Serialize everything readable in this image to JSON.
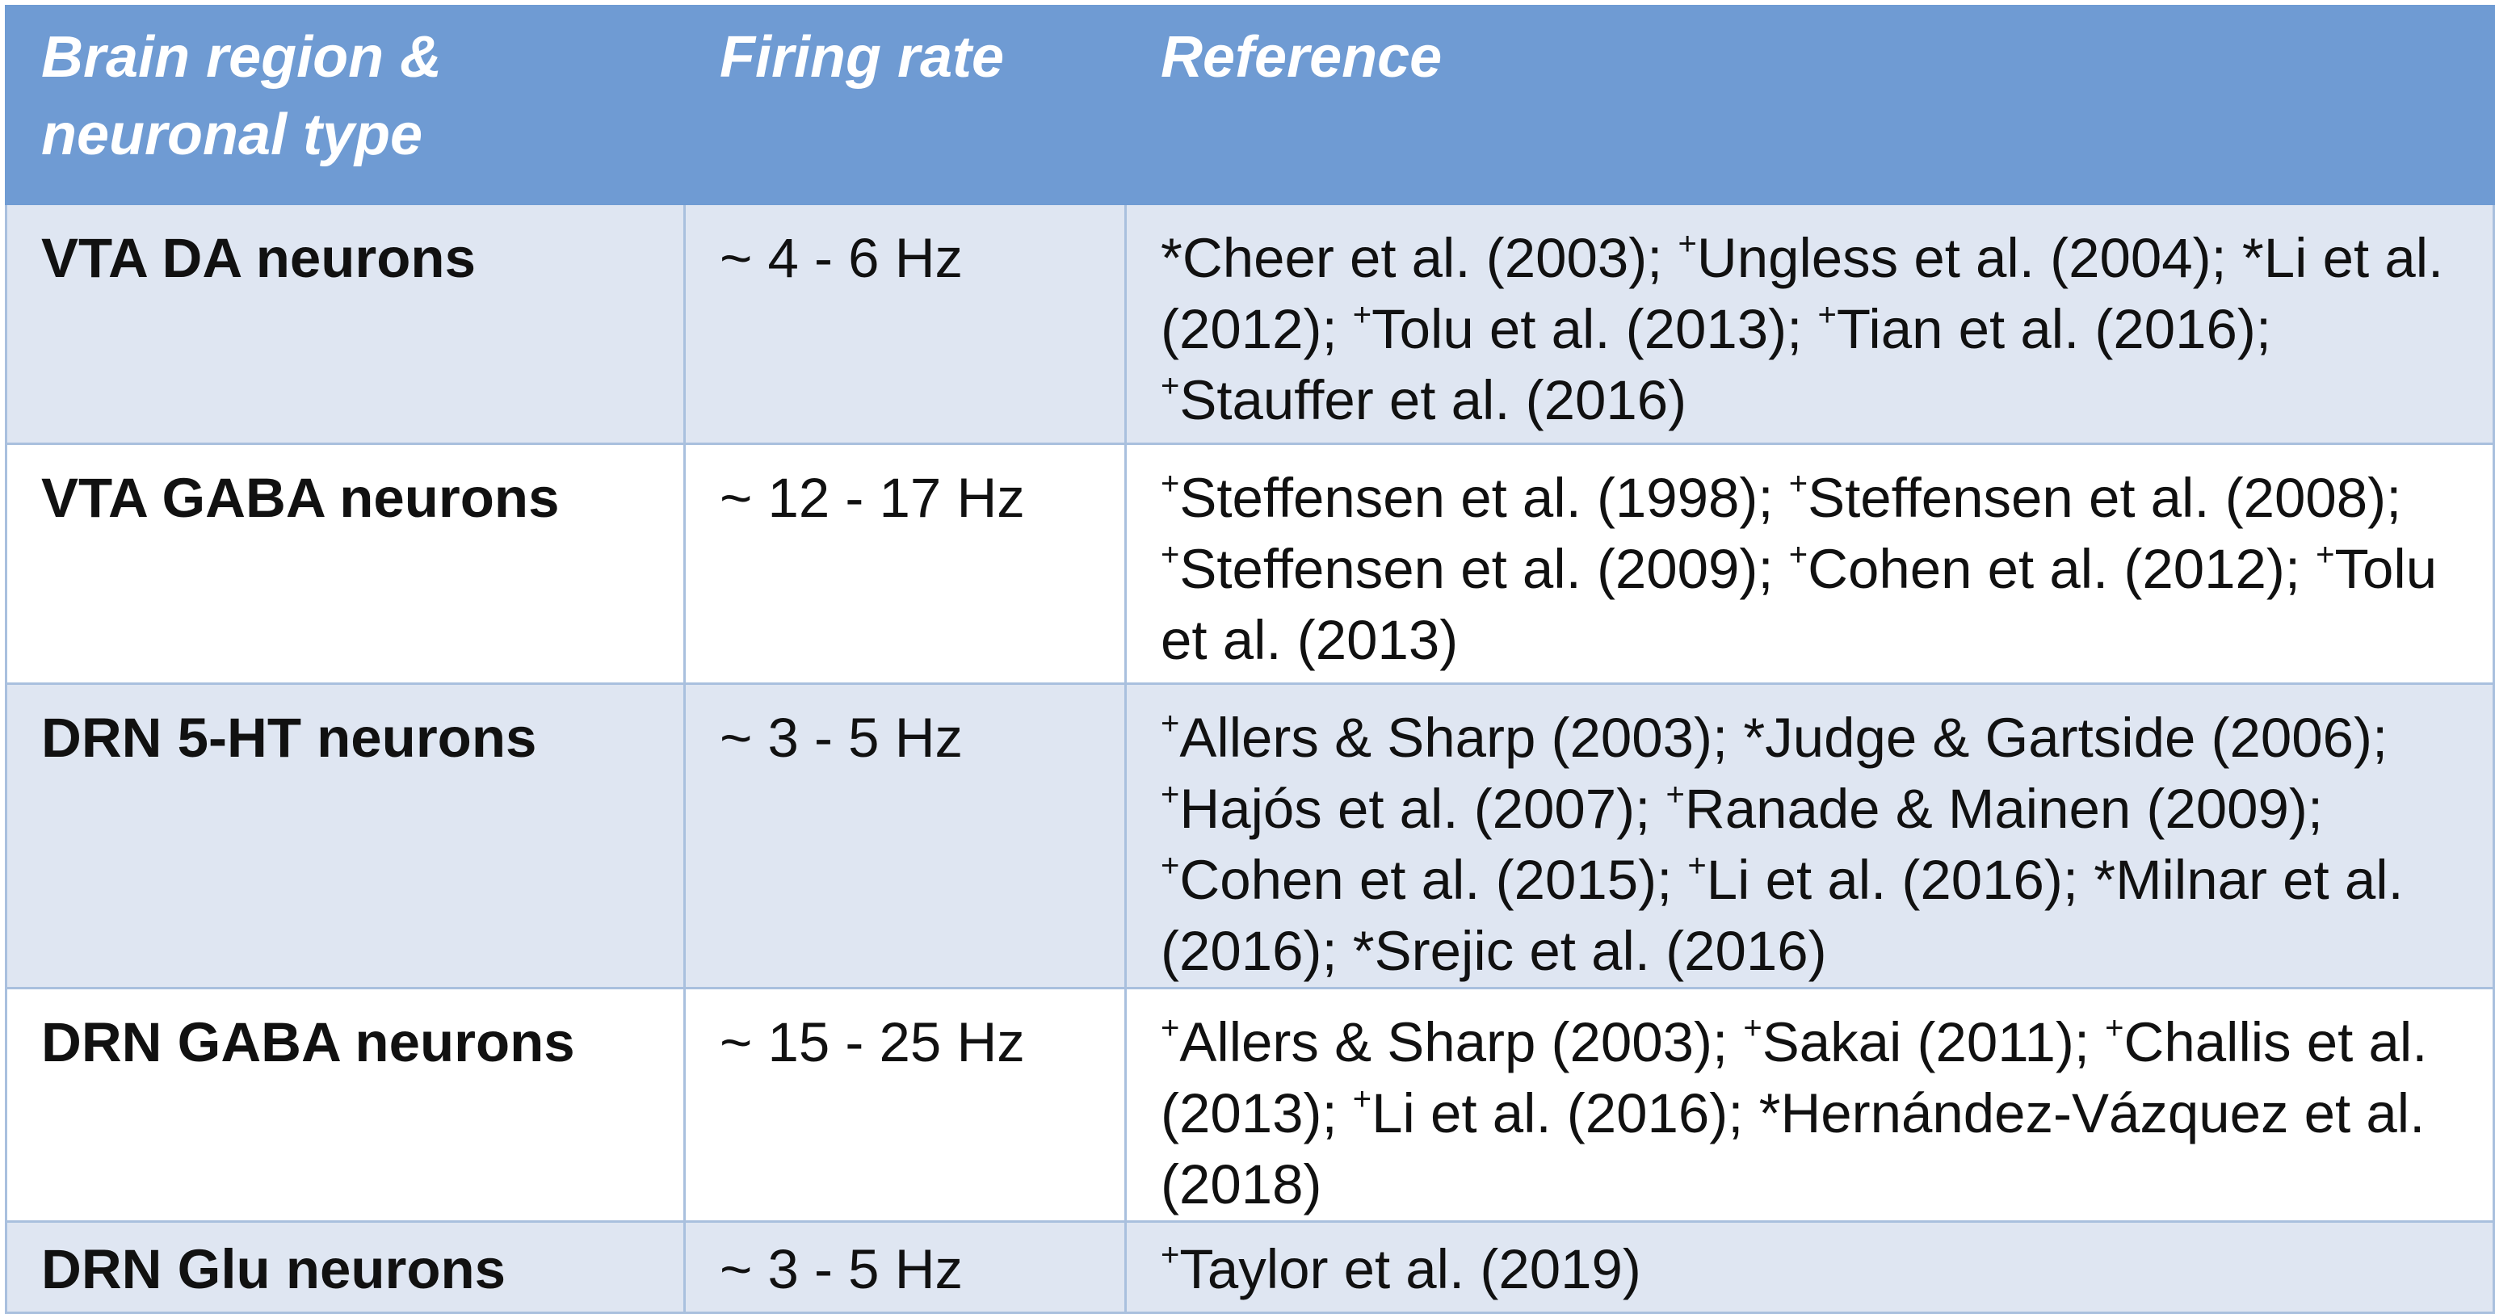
{
  "table": {
    "headers": [
      "Brain region & neuronal type",
      "Firing rate",
      "Reference"
    ],
    "rows": [
      {
        "region": "VTA DA neurons",
        "rate": "~ 4 - 6 Hz",
        "refs": [
          {
            "mark": "*",
            "text": "Cheer et al. (2003); "
          },
          {
            "mark": "+",
            "text": "Ungless et al. (2004); "
          },
          {
            "mark": "*",
            "text": "Li et al. (2012); "
          },
          {
            "mark": "+",
            "text": "Tolu et al. (2013); "
          },
          {
            "mark": "+",
            "text": "Tian et al. (2016); "
          },
          {
            "mark": "+",
            "text": "Stauffer et al. (2016)"
          }
        ]
      },
      {
        "region": "VTA GABA neurons",
        "rate": "~ 12 - 17 Hz",
        "refs": [
          {
            "mark": "+",
            "text": "Steffensen et al. (1998); "
          },
          {
            "mark": "+",
            "text": "Steffensen et al. (2008); "
          },
          {
            "mark": "+",
            "text": "Steffensen et al. (2009); "
          },
          {
            "mark": "+",
            "text": "Cohen et al. (2012); "
          },
          {
            "mark": "+",
            "text": "Tolu et al. (2013)"
          }
        ]
      },
      {
        "region": "DRN 5-HT neurons",
        "rate": "~ 3 - 5 Hz",
        "refs": [
          {
            "mark": "+",
            "text": "Allers & Sharp (2003); "
          },
          {
            "mark": "*",
            "text": "Judge & Gartside (2006); "
          },
          {
            "mark": "+",
            "text": "Hajós et al. (2007); "
          },
          {
            "mark": "+",
            "text": "Ranade & Mainen (2009); "
          },
          {
            "mark": "+",
            "text": "Cohen et al. (2015); "
          },
          {
            "mark": "+",
            "text": "Li et al. (2016); "
          },
          {
            "mark": "*",
            "text": "Milnar et al. (2016); "
          },
          {
            "mark": "*",
            "text": "Srejic et al. (2016)"
          }
        ]
      },
      {
        "region": "DRN GABA neurons",
        "rate": "~ 15 - 25 Hz",
        "refs": [
          {
            "mark": "+",
            "text": "Allers & Sharp (2003); "
          },
          {
            "mark": "+",
            "text": "Sakai (2011); "
          },
          {
            "mark": "+",
            "text": "Challis et al. (2013); "
          },
          {
            "mark": "+",
            "text": "Li et al. (2016); "
          },
          {
            "mark": "*",
            "text": "Hernández-Vázquez et al. (2018)"
          }
        ]
      },
      {
        "region": "DRN Glu neurons",
        "rate": "~ 3 - 5 Hz",
        "refs": [
          {
            "mark": "+",
            "text": "Taylor et al. (2019)"
          }
        ]
      }
    ]
  },
  "colors": {
    "header_bg": "#6f9bd3",
    "header_text": "#ffffff",
    "band_bg": "#dfe6f2",
    "grid": "#a9c0de"
  }
}
